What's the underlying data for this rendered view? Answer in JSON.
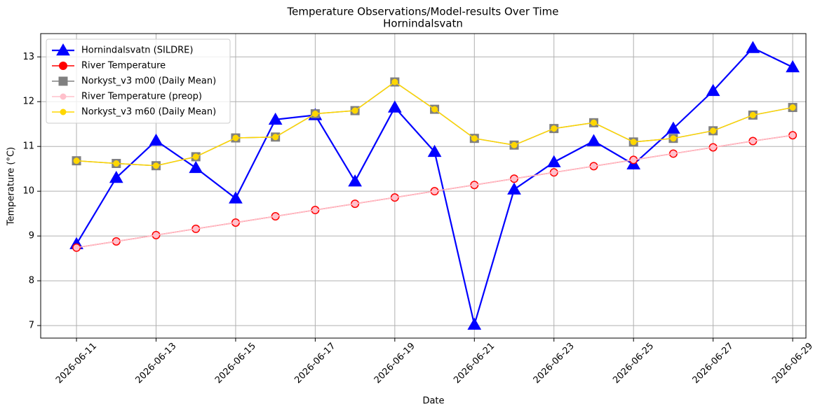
{
  "chart_data": {
    "type": "line",
    "title": "Temperature Observations/Model-results Over Time",
    "subtitle": "Hornindalsvatn",
    "xlabel": "Date",
    "ylabel": "Temperature (°C)",
    "x": [
      "2026-06-11",
      "2026-06-12",
      "2026-06-13",
      "2026-06-14",
      "2026-06-15",
      "2026-06-16",
      "2026-06-17",
      "2026-06-18",
      "2026-06-19",
      "2026-06-20",
      "2026-06-21",
      "2026-06-22",
      "2026-06-23",
      "2026-06-24",
      "2026-06-25",
      "2026-06-26",
      "2026-06-27",
      "2026-06-28",
      "2026-06-29"
    ],
    "xlim": [
      "2026-06-10T02:24",
      "2026-06-29T08:00"
    ],
    "xticks": [
      "2026-06-11",
      "2026-06-13",
      "2026-06-15",
      "2026-06-17",
      "2026-06-19",
      "2026-06-21",
      "2026-06-23",
      "2026-06-25",
      "2026-06-27",
      "2026-06-29"
    ],
    "ylim": [
      6.72,
      13.52
    ],
    "yticks": [
      7,
      8,
      9,
      10,
      11,
      12,
      13
    ],
    "grid": true,
    "legend": "upper left",
    "series": [
      {
        "name": "Hornindalsvatn (SILDRE)",
        "color": "#0000ff",
        "marker": "triangle",
        "values": [
          8.82,
          10.3,
          11.13,
          10.52,
          9.84,
          11.6,
          11.7,
          10.22,
          11.87,
          10.88,
          7.02,
          10.04,
          10.65,
          11.12,
          10.6,
          11.4,
          12.24,
          13.2,
          12.77
        ]
      },
      {
        "name": "River Temperature",
        "color": "#ff0000",
        "marker": "circle",
        "values": [
          8.74,
          8.88,
          9.02,
          9.16,
          9.3,
          9.44,
          9.58,
          9.72,
          9.86,
          10.0,
          10.14,
          10.28,
          10.42,
          10.56,
          10.7,
          10.84,
          10.98,
          11.12,
          11.25
        ]
      },
      {
        "name": "Norkyst_v3 m00 (Daily Mean)",
        "color": "#808080",
        "marker": "square",
        "values": [
          10.68,
          10.62,
          10.57,
          10.77,
          11.19,
          11.21,
          11.73,
          11.8,
          12.44,
          11.83,
          11.18,
          11.03,
          11.4,
          11.53,
          11.1,
          11.18,
          11.35,
          11.7,
          11.87
        ]
      },
      {
        "name": "River Temperature (preop)",
        "color": "#ffc0cb",
        "marker": "small-circle",
        "values": [
          8.74,
          8.88,
          9.02,
          9.16,
          9.3,
          9.44,
          9.58,
          9.72,
          9.86,
          10.0,
          10.14,
          10.28,
          10.42,
          10.56,
          10.7,
          10.84,
          10.98,
          11.12,
          11.25
        ]
      },
      {
        "name": "Norkyst_v3 m60 (Daily Mean)",
        "color": "#ffd700",
        "marker": "small-circle",
        "values": [
          10.68,
          10.62,
          10.57,
          10.77,
          11.19,
          11.21,
          11.73,
          11.8,
          12.44,
          11.83,
          11.18,
          11.03,
          11.4,
          11.53,
          11.1,
          11.18,
          11.35,
          11.7,
          11.87
        ]
      }
    ]
  }
}
